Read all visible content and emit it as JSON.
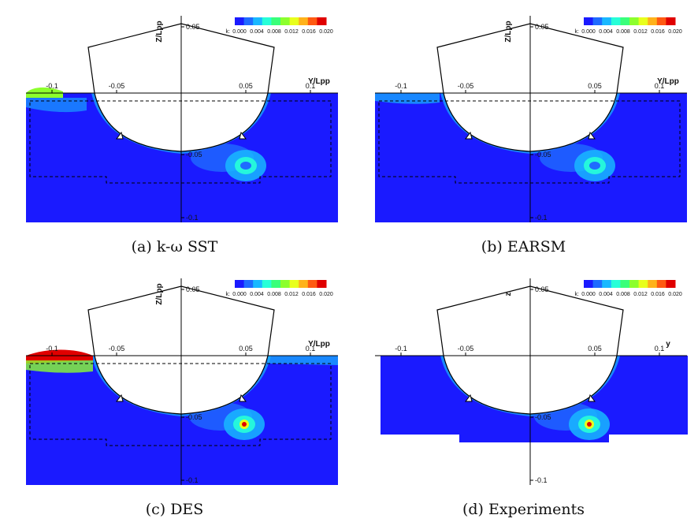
{
  "figure": {
    "panels": [
      {
        "id": "a",
        "caption": "(a) k-ω SST",
        "z_label": "Z/Lpp",
        "y_label": "Y/Lpp",
        "colorbar_key": "k:",
        "colorbar_ticks": [
          "0.000",
          "0.004",
          "0.008",
          "0.012",
          "0.016",
          "0.020"
        ],
        "y_ticks": [
          "-0.1",
          "-0.05",
          "0.05",
          "0.1"
        ],
        "z_ticks": [
          "0.05",
          "-0.05",
          "-0.1"
        ],
        "variant": "sst"
      },
      {
        "id": "b",
        "caption": "(b) EARSM",
        "z_label": "Z/Lpp",
        "y_label": "Y/Lpp",
        "colorbar_key": "k:",
        "colorbar_ticks": [
          "0.000",
          "0.004",
          "0.008",
          "0.012",
          "0.016",
          "0.020"
        ],
        "y_ticks": [
          "-0.1",
          "-0.05",
          "0.05",
          "0.1"
        ],
        "z_ticks": [
          "0.05",
          "-0.05",
          "-0.1"
        ],
        "variant": "earsm"
      },
      {
        "id": "c",
        "caption": "(c) DES",
        "z_label": "Z/Lpp",
        "y_label": "Y/Lpp",
        "colorbar_key": "k:",
        "colorbar_ticks": [
          "0.000",
          "0.004",
          "0.008",
          "0.012",
          "0.016",
          "0.020"
        ],
        "y_ticks": [
          "-0.1",
          "-0.05",
          "0.05",
          "0.1"
        ],
        "z_ticks": [
          "0.05",
          "-0.05",
          "-0.1"
        ],
        "variant": "des"
      },
      {
        "id": "d",
        "caption": "(d) Experiments",
        "z_label": "z",
        "y_label": "y",
        "colorbar_key": "k:",
        "colorbar_ticks": [
          "0.000",
          "0.004",
          "0.008",
          "0.012",
          "0.016",
          "0.020"
        ],
        "y_ticks": [
          "-0.1",
          "-0.05",
          "0.05",
          "0.1"
        ],
        "z_ticks": [
          "0.05",
          "-0.05",
          "-0.1"
        ],
        "variant": "exp"
      }
    ],
    "colormap": [
      "#1a1aff",
      "#1f6bff",
      "#19b8ff",
      "#27ffd8",
      "#39ff7a",
      "#8cff2d",
      "#e8ff1c",
      "#ffb21a",
      "#ff5a12",
      "#e00000"
    ]
  }
}
